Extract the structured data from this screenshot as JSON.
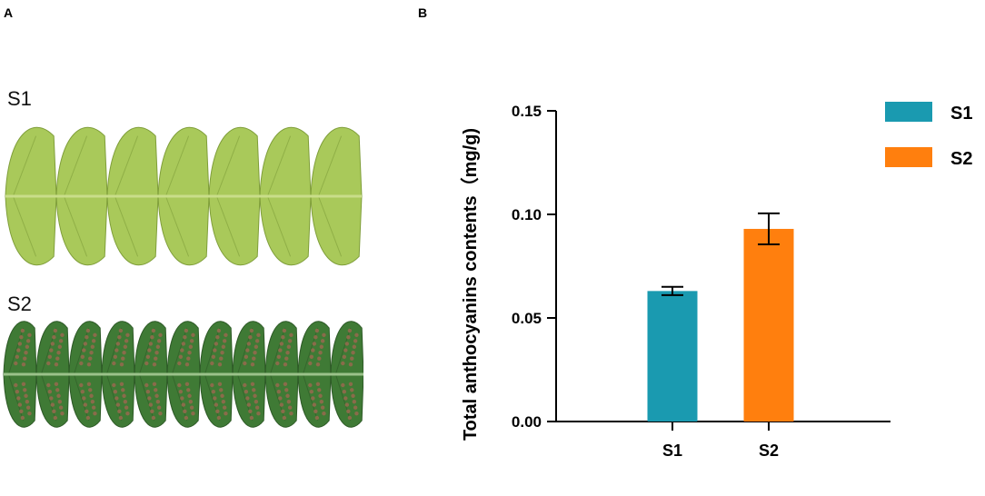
{
  "panels": {
    "a_label": "A",
    "b_label": "B",
    "photo_top_label": "S1",
    "photo_bottom_label": "S2"
  },
  "colors": {
    "S1": "#1a9ab0",
    "S2": "#ff7f0e",
    "leaf_light": "#a9c95a",
    "leaf_dark": "#3f7a35",
    "sori": "#8a6b4a"
  },
  "chart_data": {
    "type": "bar",
    "categories": [
      "S1",
      "S2"
    ],
    "values": [
      0.063,
      0.093
    ],
    "errors": [
      0.002,
      0.0075
    ],
    "ylabel": "Total anthocyanins contents（mg/g)",
    "xlabel": "",
    "ylim": [
      0,
      0.15
    ],
    "yticks": [
      0.0,
      0.05,
      0.1,
      0.15
    ],
    "ytick_labels": [
      "0.00",
      "0.05",
      "0.10",
      "0.15"
    ],
    "legend": [
      {
        "name": "S1",
        "color": "#1a9ab0"
      },
      {
        "name": "S2",
        "color": "#ff7f0e"
      }
    ],
    "legend_position": "top-right",
    "grid": false
  }
}
